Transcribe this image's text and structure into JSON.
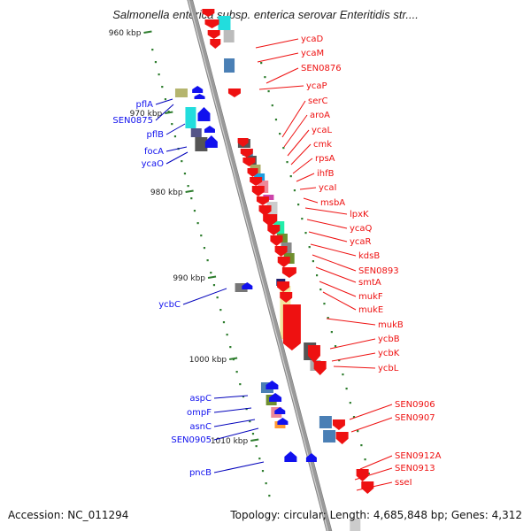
{
  "title": "Salmonella enterica subsp. enterica serovar Enteritidis str....",
  "accession": "Accession: NC_011294",
  "summary": "Topology: circular; Length: 4,685,848 bp; Genes: 4,312",
  "colors": {
    "forward_label": "#0000bb",
    "reverse_label": "#ee1111",
    "forward_gene": "#1111ee",
    "reverse_gene": "#ee1111",
    "backbone": "#9a9a9a",
    "tick": "#2e7d2e"
  },
  "ruler": [
    {
      "label": "960 kbp"
    },
    {
      "label": "970 kbp"
    },
    {
      "label": "980 kbp"
    },
    {
      "label": "990 kbp"
    },
    {
      "label": "1000 kbp"
    },
    {
      "label": "1010 kbp"
    }
  ],
  "forward_genes": [
    {
      "name": "pflA",
      "color": "#1111ee"
    },
    {
      "name": "SEN0875",
      "color": "#1111ee"
    },
    {
      "name": "pflB",
      "color": "#1111ee"
    },
    {
      "name": "focA",
      "color": "#1111ee"
    },
    {
      "name": "ycaO",
      "color": "#1111ee"
    },
    {
      "name": "ycbC",
      "color": "#1111ee"
    },
    {
      "name": "aspC",
      "color": "#1111ee"
    },
    {
      "name": "ompF",
      "color": "#1111ee"
    },
    {
      "name": "asnC",
      "color": "#1111ee"
    },
    {
      "name": "SEN0905",
      "color": "#1111ee"
    },
    {
      "name": "pncB",
      "color": "#1111ee"
    }
  ],
  "reverse_genes": [
    {
      "name": "ycaD",
      "color": "#ee1111"
    },
    {
      "name": "ycaM",
      "color": "#ee1111"
    },
    {
      "name": "SEN0876",
      "color": "#ee1111"
    },
    {
      "name": "ycaP",
      "color": "#ee1111"
    },
    {
      "name": "serC",
      "color": "#ee1111"
    },
    {
      "name": "aroA",
      "color": "#ee1111"
    },
    {
      "name": "ycaL",
      "color": "#ee1111"
    },
    {
      "name": "cmk",
      "color": "#ee1111"
    },
    {
      "name": "rpsA",
      "color": "#ee1111"
    },
    {
      "name": "ihfB",
      "color": "#ee1111"
    },
    {
      "name": "ycaI",
      "color": "#ee1111"
    },
    {
      "name": "msbA",
      "color": "#ee1111"
    },
    {
      "name": "lpxK",
      "color": "#ee1111"
    },
    {
      "name": "ycaQ",
      "color": "#ee1111"
    },
    {
      "name": "ycaR",
      "color": "#ee1111"
    },
    {
      "name": "kdsB",
      "color": "#ee1111"
    },
    {
      "name": "SEN0893",
      "color": "#ee1111"
    },
    {
      "name": "smtA",
      "color": "#ee1111"
    },
    {
      "name": "mukF",
      "color": "#ee1111"
    },
    {
      "name": "mukE",
      "color": "#ee1111"
    },
    {
      "name": "mukB",
      "color": "#ee1111"
    },
    {
      "name": "ycbB",
      "color": "#ee1111"
    },
    {
      "name": "ycbK",
      "color": "#ee1111"
    },
    {
      "name": "ycbL",
      "color": "#ee1111"
    },
    {
      "name": "SEN0906",
      "color": "#ee1111"
    },
    {
      "name": "SEN0907",
      "color": "#ee1111"
    },
    {
      "name": "SEN0912A",
      "color": "#ee1111"
    },
    {
      "name": "SEN0913",
      "color": "#ee1111"
    },
    {
      "name": "sseI",
      "color": "#ee1111"
    }
  ]
}
